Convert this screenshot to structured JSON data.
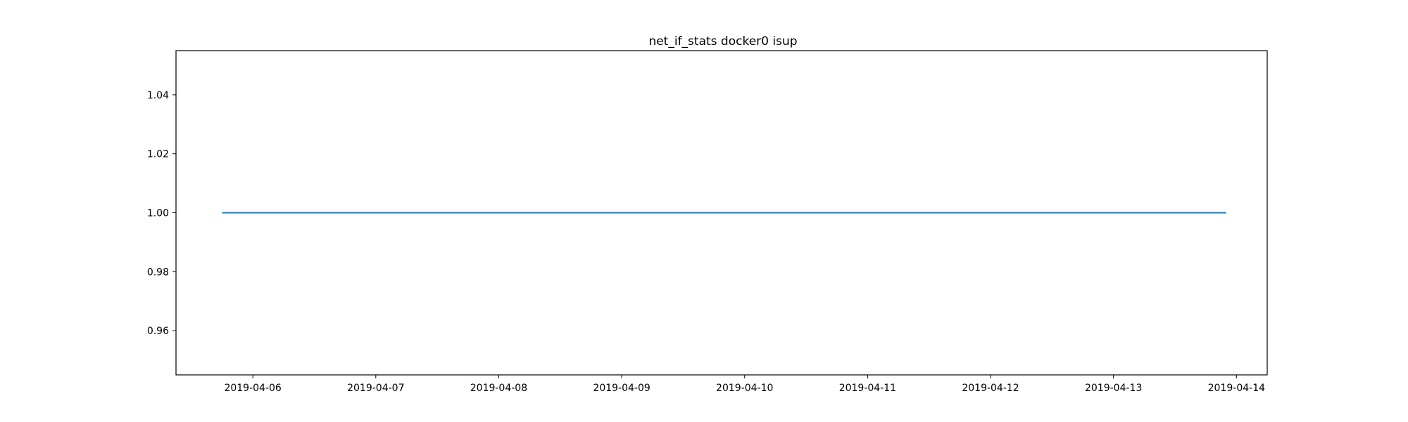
{
  "chart_data": {
    "type": "line",
    "title": "net_if_stats docker0 isup",
    "xlabel": "",
    "ylabel": "",
    "x_ticks": [
      "2019-04-06",
      "2019-04-07",
      "2019-04-08",
      "2019-04-09",
      "2019-04-10",
      "2019-04-11",
      "2019-04-12",
      "2019-04-13",
      "2019-04-14"
    ],
    "y_ticks": [
      "0.96",
      "0.98",
      "1.00",
      "1.02",
      "1.04"
    ],
    "xlim": [
      "2019-04-05 09:00",
      "2019-04-14 06:00"
    ],
    "ylim": [
      0.945,
      1.055
    ],
    "grid": false,
    "series": [
      {
        "color": "#1f77b4",
        "x": [
          "2019-04-05 18:00",
          "2019-04-13 22:00"
        ],
        "y": [
          1.0,
          1.0
        ]
      }
    ]
  }
}
